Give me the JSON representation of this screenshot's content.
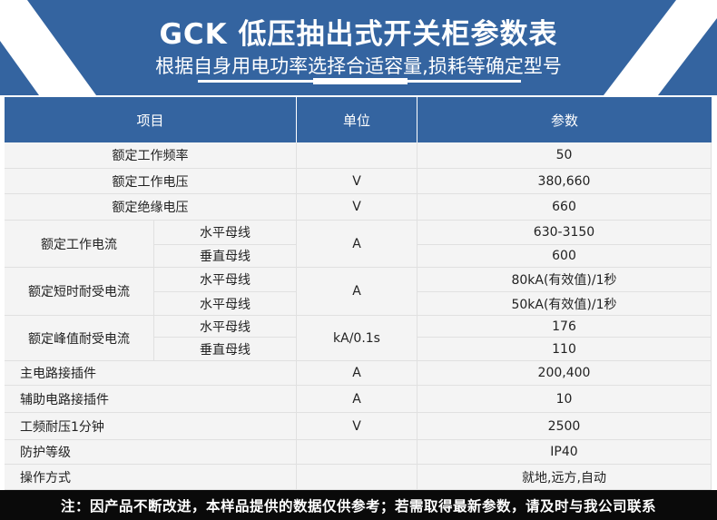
{
  "header": {
    "title": "GCK 低压抽出式开关柜参数表",
    "subtitle": "根据自身用电功率选择合适容量,损耗等确定型号",
    "brand_color": "#3464a0"
  },
  "table": {
    "columns": [
      "项目",
      "单位",
      "参数"
    ],
    "rows": [
      {
        "item": "额定工作频率",
        "unit": "",
        "values": [
          "50"
        ]
      },
      {
        "item": "额定工作电压",
        "unit": "V",
        "values": [
          "380,660"
        ]
      },
      {
        "item": "额定绝缘电压",
        "unit": "V",
        "values": [
          "660"
        ]
      },
      {
        "item": "额定工作电流",
        "unit": "A",
        "subs": [
          "水平母线",
          "垂直母线"
        ],
        "values": [
          "630-3150",
          "600"
        ]
      },
      {
        "item": "额定短时耐受电流",
        "unit": "A",
        "subs": [
          "水平母线",
          "水平母线"
        ],
        "values": [
          "80kA(有效值)/1秒",
          "50kA(有效值)/1秒"
        ]
      },
      {
        "item": "额定峰值耐受电流",
        "unit": "kA/0.1s",
        "subs": [
          "水平母线",
          "垂直母线"
        ],
        "values": [
          "176",
          "110"
        ]
      },
      {
        "item": "主电路接插件",
        "unit": "A",
        "values": [
          "200,400"
        ],
        "align": "left"
      },
      {
        "item": "辅助电路接插件",
        "unit": "A",
        "values": [
          "10"
        ],
        "align": "left"
      },
      {
        "item": "工频耐压1分钟",
        "unit": "V",
        "values": [
          "2500"
        ],
        "align": "left"
      },
      {
        "item": "防护等级",
        "unit": "",
        "values": [
          "IP40"
        ],
        "align": "left"
      },
      {
        "item": "操作方式",
        "unit": "",
        "values": [
          "就地,远方,自动"
        ],
        "align": "left"
      }
    ]
  },
  "footer": {
    "note": "注：因产品不断改进，本样品提供的数据仅供参考；若需取得最新参数，请及时与我公司联系"
  }
}
